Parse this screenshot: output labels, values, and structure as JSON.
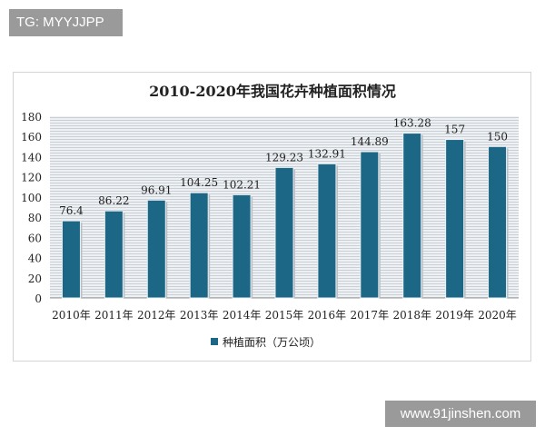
{
  "watermarks": {
    "top_left": "TG: MYYJJPP",
    "bottom_right": "www.91jinshen.com"
  },
  "chart_data": {
    "type": "bar",
    "title": "2010-2020年我国花卉种植面积情况",
    "categories": [
      "2010年",
      "2011年",
      "2012年",
      "2013年",
      "2014年",
      "2015年",
      "2016年",
      "2017年",
      "2018年",
      "2019年",
      "2020年"
    ],
    "series": [
      {
        "name": "种植面积（万公顷）",
        "values": [
          76.4,
          86.22,
          96.91,
          104.25,
          102.21,
          129.23,
          132.91,
          144.89,
          163.28,
          157,
          150
        ],
        "labels": [
          "76.4",
          "86.22",
          "96.91",
          "104.25",
          "102.21",
          "129.23",
          "132.91",
          "144.89",
          "163.28",
          "157",
          "150"
        ],
        "color": "#1d6786"
      }
    ],
    "ylim": [
      0,
      180
    ],
    "yticks": [
      0,
      20,
      40,
      60,
      80,
      100,
      120,
      140,
      160,
      180
    ],
    "grid": true,
    "legend": "bottom",
    "xlabel": "",
    "ylabel": ""
  }
}
